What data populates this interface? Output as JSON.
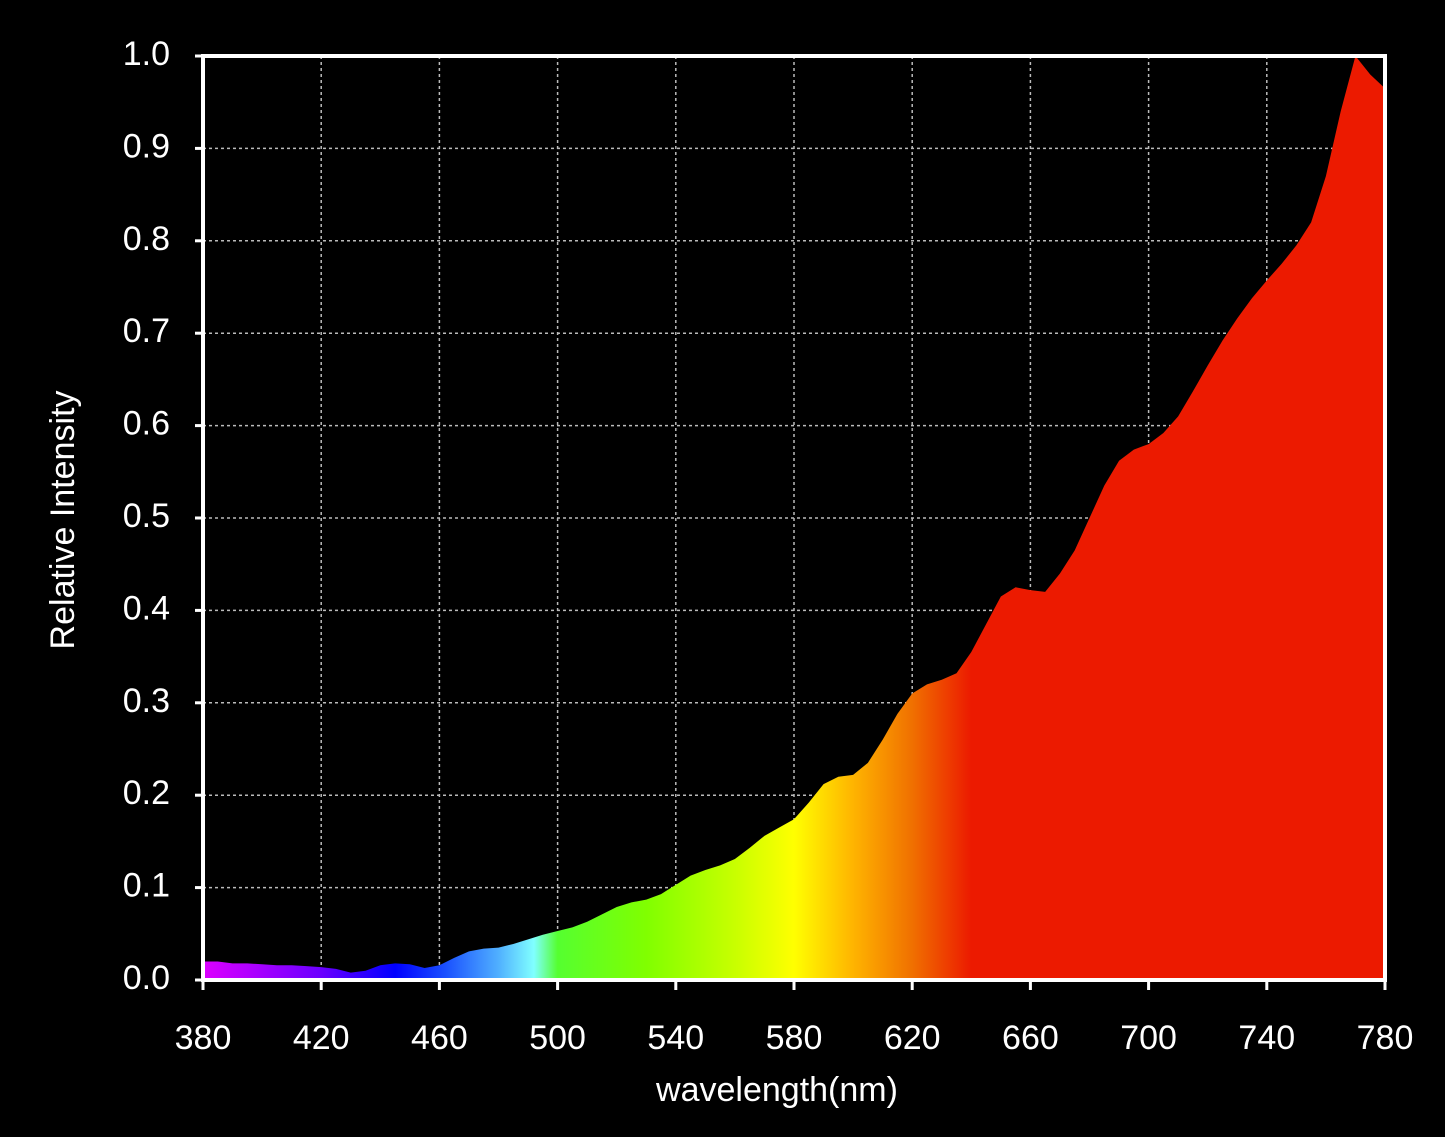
{
  "chart_data": {
    "type": "area",
    "xlabel": "wavelength(nm)",
    "ylabel": "Relative Intensity",
    "x": [
      380,
      385,
      390,
      395,
      400,
      405,
      410,
      415,
      420,
      425,
      430,
      435,
      440,
      445,
      450,
      455,
      460,
      465,
      470,
      475,
      480,
      485,
      490,
      495,
      500,
      505,
      510,
      515,
      520,
      525,
      530,
      535,
      540,
      545,
      550,
      555,
      560,
      565,
      570,
      575,
      580,
      585,
      590,
      595,
      600,
      605,
      610,
      615,
      620,
      625,
      630,
      635,
      640,
      645,
      650,
      655,
      660,
      665,
      670,
      675,
      680,
      685,
      690,
      695,
      700,
      705,
      710,
      715,
      720,
      725,
      730,
      735,
      740,
      745,
      750,
      755,
      760,
      765,
      770,
      775,
      780
    ],
    "values": [
      0.02,
      0.02,
      0.018,
      0.018,
      0.017,
      0.016,
      0.016,
      0.015,
      0.014,
      0.012,
      0.008,
      0.01,
      0.016,
      0.018,
      0.017,
      0.013,
      0.016,
      0.024,
      0.031,
      0.034,
      0.035,
      0.039,
      0.044,
      0.049,
      0.053,
      0.057,
      0.063,
      0.071,
      0.079,
      0.084,
      0.087,
      0.093,
      0.103,
      0.113,
      0.119,
      0.124,
      0.131,
      0.143,
      0.156,
      0.165,
      0.174,
      0.192,
      0.212,
      0.22,
      0.222,
      0.235,
      0.26,
      0.288,
      0.31,
      0.32,
      0.325,
      0.332,
      0.355,
      0.385,
      0.415,
      0.425,
      0.422,
      0.42,
      0.44,
      0.465,
      0.5,
      0.535,
      0.562,
      0.574,
      0.58,
      0.592,
      0.61,
      0.637,
      0.665,
      0.692,
      0.716,
      0.738,
      0.757,
      0.775,
      0.795,
      0.82,
      0.87,
      0.94,
      1.0,
      0.98,
      0.965
    ],
    "color_stops": [
      {
        "x": 380,
        "color": "#dd00ff"
      },
      {
        "x": 420,
        "color": "#6a00ff"
      },
      {
        "x": 445,
        "color": "#0000ff"
      },
      {
        "x": 462,
        "color": "#1a50ff"
      },
      {
        "x": 480,
        "color": "#50b0ff"
      },
      {
        "x": 492,
        "color": "#80ffff"
      },
      {
        "x": 500,
        "color": "#55ff30"
      },
      {
        "x": 530,
        "color": "#80ff00"
      },
      {
        "x": 560,
        "color": "#c8ff00"
      },
      {
        "x": 580,
        "color": "#ffff00"
      },
      {
        "x": 600,
        "color": "#ffb400"
      },
      {
        "x": 620,
        "color": "#f07000"
      },
      {
        "x": 640,
        "color": "#ec1a00"
      },
      {
        "x": 780,
        "color": "#ec1a00"
      }
    ],
    "xlim": [
      380,
      780
    ],
    "xticks": [
      380,
      420,
      460,
      500,
      540,
      580,
      620,
      660,
      700,
      740,
      780
    ],
    "ylim": [
      0,
      1
    ],
    "yticks": [
      {
        "value": 0,
        "label": "0.0"
      },
      0.1,
      0.2,
      0.3,
      0.4,
      0.5,
      0.6,
      0.7,
      0.8,
      0.9,
      {
        "value": 1,
        "label": "1.0"
      }
    ],
    "grid": true
  }
}
